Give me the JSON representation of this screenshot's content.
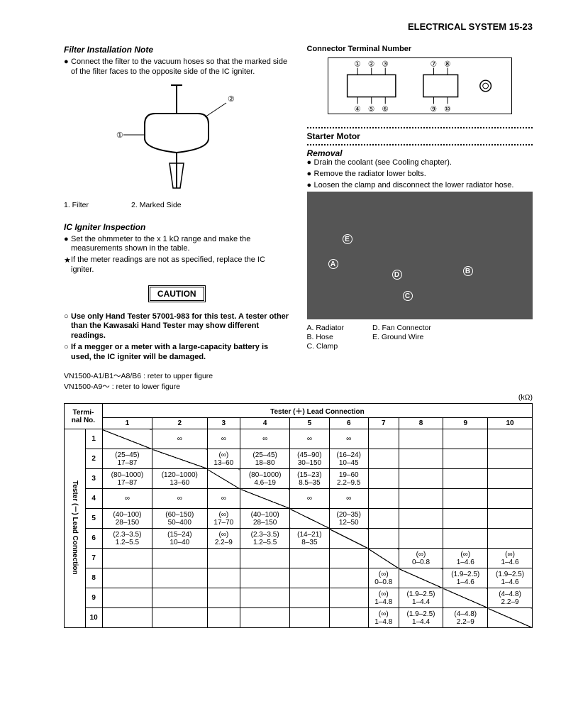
{
  "header": {
    "title": "ELECTRICAL  SYSTEM  15-23"
  },
  "left": {
    "filter_note_title": "Filter Installation Note",
    "filter_bullets": [
      "Connect the filter to the vacuum hoses so that the marked side of the filter faces to the opposite side of the IC igniter."
    ],
    "filter_legend": {
      "a": "1. Filter",
      "b": "2. Marked Side"
    },
    "igniter_title": "IC Igniter Inspection",
    "igniter_bullets": [
      {
        "mark": "●",
        "txt": "Set the ohmmeter to the x 1 kΩ range and make the measurements shown in the table."
      },
      {
        "mark": "★",
        "txt": "If the meter readings are not as specified, replace the IC igniter."
      }
    ],
    "caution": "CAUTION",
    "caution_bullets": [
      {
        "mark": "○",
        "txt": "Use only Hand Tester 57001-983 for this test. A tester other than the Kawasaki Hand Tester may show different readings."
      },
      {
        "mark": "○",
        "txt": "If a megger or a meter with a large-capacity battery is used, the IC igniter will be damaged."
      }
    ]
  },
  "right": {
    "connector_title": "Connector Terminal Number",
    "terminal_nums": [
      "①",
      "②",
      "③",
      "⑦",
      "⑧",
      "④",
      "⑤",
      "⑥",
      "⑨",
      "⑩"
    ],
    "starter_title": "Starter Motor",
    "removal_title": "Removal",
    "removal_bullets": [
      "Drain the coolant (see Cooling chapter).",
      "Remove the radiator lower bolts.",
      "Loosen the clamp and disconnect the lower radiator hose."
    ],
    "photo_labels": {
      "A": "A",
      "B": "B",
      "C": "C",
      "D": "D",
      "E": "E"
    },
    "photo_legend_left": [
      "A. Radiator",
      "B. Hose",
      "C. Clamp"
    ],
    "photo_legend_right": [
      "D. Fan Connector",
      "E. Ground Wire"
    ]
  },
  "model_notes": [
    "VN1500-A1/B1～A8/B6 : reter to upper figure",
    "VN1500-A9～ : reter to lower figure"
  ],
  "unit": "(kΩ)",
  "table": {
    "header_top": "Tester (＋) Lead Connection",
    "side_header": "Tester (－) Lead Connection",
    "terminal_label": "Termi-\nnal No.",
    "cols": [
      "1",
      "2",
      "3",
      "4",
      "5",
      "6",
      "7",
      "8",
      "9",
      "10"
    ],
    "rows": [
      {
        "n": "1",
        "c": [
          "diag",
          "∞",
          "∞",
          "∞",
          "∞",
          "∞",
          "",
          "",
          "",
          ""
        ]
      },
      {
        "n": "2",
        "c": [
          "(25–45)\n17–87",
          "diag",
          "(∞)\n13–60",
          "(25–45)\n18–80",
          "(45–90)\n30–150",
          "(16–24)\n10–45",
          "",
          "",
          "",
          ""
        ]
      },
      {
        "n": "3",
        "c": [
          "(80–1000)\n17–87",
          "(120–1000)\n13–60",
          "diag",
          "(80–1000)\n4.6–19",
          "(15–23)\n8.5–35",
          "19–60\n2.2–9.5",
          "",
          "",
          "",
          ""
        ]
      },
      {
        "n": "4",
        "c": [
          "∞",
          "∞",
          "∞",
          "diag",
          "∞",
          "∞",
          "",
          "",
          "",
          ""
        ]
      },
      {
        "n": "5",
        "c": [
          "(40–100)\n28–150",
          "(60–150)\n50–400",
          "(∞)\n17–70",
          "(40–100)\n28–150",
          "diag",
          "(20–35)\n12–50",
          "",
          "",
          "",
          ""
        ]
      },
      {
        "n": "6",
        "c": [
          "(2.3–3.5)\n1.2–5.5",
          "(15–24)\n10–40",
          "(∞)\n2.2–9",
          "(2.3–3.5)\n1.2–5.5",
          "(14–21)\n8–35",
          "diag",
          "",
          "",
          "",
          ""
        ]
      },
      {
        "n": "7",
        "c": [
          "",
          "",
          "",
          "",
          "",
          "",
          "diag",
          "(∞)\n0–0.8",
          "(∞)\n1–4.6",
          "(∞)\n1–4.6"
        ]
      },
      {
        "n": "8",
        "c": [
          "",
          "",
          "",
          "",
          "",
          "",
          "(∞)\n0–0.8",
          "diag",
          "(1.9–2.5)\n1–4.6",
          "(1.9–2.5)\n1–4.6"
        ]
      },
      {
        "n": "9",
        "c": [
          "",
          "",
          "",
          "",
          "",
          "",
          "(∞)\n1–4.8",
          "(1.9–2.5)\n1–4.4",
          "diag",
          "(4–4.8)\n2.2–9"
        ]
      },
      {
        "n": "10",
        "c": [
          "",
          "",
          "",
          "",
          "",
          "",
          "(∞)\n1–4.8",
          "(1.9–2.5)\n1–4.4",
          "(4–4.8)\n2.2–9",
          "diag"
        ]
      }
    ]
  }
}
